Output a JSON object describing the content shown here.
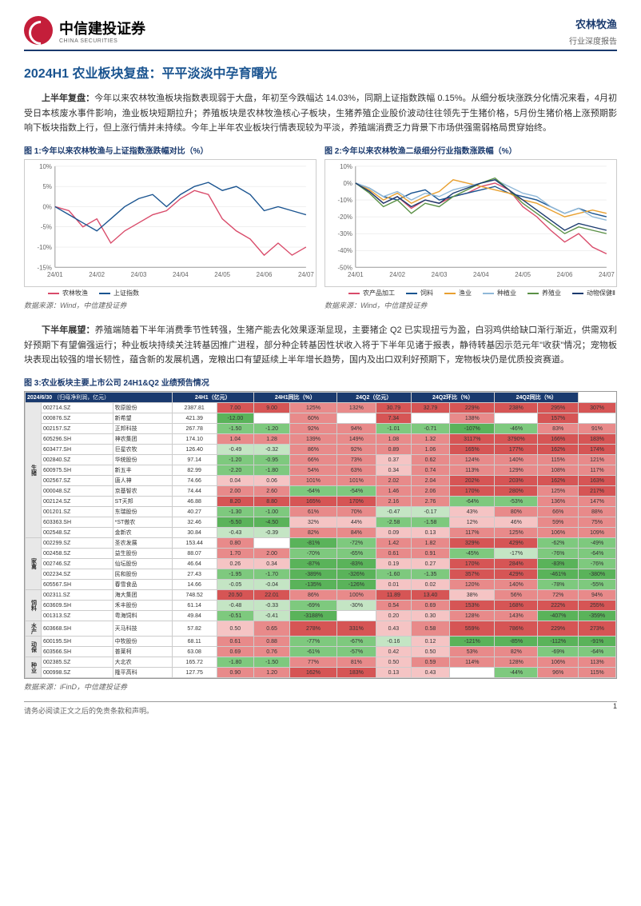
{
  "header": {
    "logo_cn": "中信建投证券",
    "logo_en": "CHINA SECURITIES",
    "sector": "农林牧渔",
    "report_type": "行业深度报告"
  },
  "title": "2024H1 农业板块复盘：平平淡淡中孕育曙光",
  "para1_lead": "上半年复盘：",
  "para1": "今年以来农林牧渔板块指数表现弱于大盘，年初至今跌幅达 14.03%，同期上证指数跌幅 0.15%。从细分板块涨跌分化情况来看，4月初受日本核废水事件影响，渔业板块短期拉升；养殖板块是农林牧渔核心子板块，生猪养殖企业股价波动往往领先于生猪价格，5月份生猪价格上涨预期影响下板块指数上行，但上涨行情并未持续。今年上半年农业板块行情表现较为平淡，养殖端消费乏力背景下市场供强需弱格局贯穿始终。",
  "chart1": {
    "title": "图 1:今年以来农林牧渔与上证指数涨跌幅对比（%）",
    "xticks": [
      "24/01",
      "24/02",
      "24/03",
      "24/04",
      "24/05",
      "24/06",
      "24/07"
    ],
    "ylim": [
      -15,
      10
    ],
    "yticks": [
      -15,
      -10,
      -5,
      0,
      5,
      10
    ],
    "series": [
      {
        "name": "农林牧渔",
        "color": "#d94b6a",
        "data": [
          0,
          -1,
          -5,
          -3,
          -9,
          -6,
          -4,
          -2,
          -1,
          2,
          4,
          3,
          -3,
          -6,
          -8,
          -12,
          -9,
          -12,
          -10
        ]
      },
      {
        "name": "上证指数",
        "color": "#1a5490",
        "data": [
          0,
          -2,
          -4,
          -6,
          -3,
          0,
          2,
          3,
          0,
          3,
          5,
          6,
          4,
          5,
          3,
          -1,
          0,
          -1,
          -2
        ]
      }
    ],
    "source": "数据来源：Wind，中信建投证券"
  },
  "chart2": {
    "title": "图 2:今年以来农林牧渔二级细分行业指数涨跌幅（%）",
    "xticks": [
      "24/01",
      "24/02",
      "24/03",
      "24/04",
      "24/05",
      "24/06",
      "24/07"
    ],
    "ylim": [
      -50,
      10
    ],
    "yticks": [
      -50,
      -40,
      -30,
      -20,
      -10,
      0,
      10
    ],
    "series": [
      {
        "name": "农产品加工",
        "color": "#d94b6a",
        "data": [
          0,
          -5,
          -12,
          -8,
          -15,
          -10,
          -12,
          -8,
          -6,
          -2,
          0,
          -4,
          -14,
          -20,
          -28,
          -35,
          -30,
          -38,
          -42
        ]
      },
      {
        "name": "饲料",
        "color": "#1a5490",
        "data": [
          0,
          -3,
          -8,
          -10,
          -6,
          -4,
          -10,
          -8,
          -6,
          -4,
          -2,
          -6,
          -8,
          -10,
          -14,
          -18,
          -15,
          -18,
          -20
        ]
      },
      {
        "name": "渔业",
        "color": "#e8a030",
        "data": [
          0,
          -4,
          -10,
          -6,
          -12,
          -8,
          -5,
          2,
          0,
          -2,
          -4,
          -6,
          -10,
          -12,
          -16,
          -20,
          -18,
          -16,
          -18
        ]
      },
      {
        "name": "种植业",
        "color": "#8fb8d8",
        "data": [
          0,
          -3,
          -8,
          -5,
          -10,
          -6,
          -8,
          -4,
          -2,
          0,
          2,
          -2,
          -6,
          -8,
          -14,
          -18,
          -15,
          -20,
          -22
        ]
      },
      {
        "name": "养殖业",
        "color": "#5a9045",
        "data": [
          0,
          -6,
          -14,
          -10,
          -18,
          -12,
          -14,
          -8,
          -4,
          0,
          3,
          -4,
          -12,
          -18,
          -24,
          -30,
          -26,
          -28,
          -30
        ]
      },
      {
        "name": "动物保健Ⅱ",
        "color": "#1a3a6e",
        "data": [
          0,
          -5,
          -12,
          -8,
          -14,
          -10,
          -12,
          -6,
          -3,
          0,
          2,
          -4,
          -10,
          -16,
          -22,
          -28,
          -24,
          -26,
          -28
        ]
      }
    ],
    "source": "数据来源：Wind，中信建投证券"
  },
  "para2_lead": "下半年展望：",
  "para2": "养殖端随着下半年消费季节性转强，生猪产能去化效果逐渐显现，主要猪企 Q2 已实现扭亏为盈，白羽鸡供给缺口渐行渐近，供需双利好预期下有望偏强运行；种业板块持续关注转基因推广进程，部分种企转基因性状收入将于下半年见诸于报表，静待转基因示范元年\"收获\"情况；宠物板块表现出较强的增长韧性，蕴含新的发展机遇，宠粮出口有望延续上半年增长趋势，国内及出口双利好预期下，宠物板块仍是优质投资赛道。",
  "table": {
    "title": "图 3:农业板块主要上市公司 24H1&Q2 业绩预告情况",
    "head_date": "2024/6/30",
    "head_unit": "（归母净利润，亿元）",
    "cols_group": [
      "",
      "",
      "市值（亿元）",
      "24H1（亿元）",
      "24H1同比（%）",
      "24Q2（亿元）",
      "24Q2环比（%）",
      "24Q2同比（%）"
    ],
    "source": "数据来源：iFinD，中信建投证券",
    "cats": [
      {
        "name": "生猪",
        "rows": [
          [
            "002714.SZ",
            "牧原股份",
            "2387.81",
            "7.00",
            "9.00",
            "125%",
            "132%",
            "30.79",
            "32.79",
            "229%",
            "238%",
            "295%",
            "307%"
          ],
          [
            "000876.SZ",
            "新希望",
            "421.39",
            "-12.00",
            "",
            "60%",
            "",
            "7.34",
            "",
            "138%",
            "",
            "157%",
            ""
          ],
          [
            "002157.SZ",
            "正邦科技",
            "267.78",
            "-1.50",
            "-1.20",
            "92%",
            "94%",
            "-1.01",
            "-0.71",
            "-107%",
            "-46%",
            "83%",
            "91%"
          ],
          [
            "605296.SH",
            "神农集团",
            "174.10",
            "1.04",
            "1.28",
            "139%",
            "149%",
            "1.08",
            "1.32",
            "3117%",
            "3790%",
            "166%",
            "183%"
          ],
          [
            "603477.SH",
            "巨星农牧",
            "126.40",
            "-0.49",
            "-0.32",
            "86%",
            "92%",
            "0.89",
            "1.06",
            "165%",
            "177%",
            "162%",
            "174%"
          ],
          [
            "002840.SZ",
            "华统股份",
            "97.14",
            "-1.20",
            "-0.95",
            "66%",
            "73%",
            "0.37",
            "0.62",
            "124%",
            "140%",
            "115%",
            "121%"
          ],
          [
            "600975.SH",
            "新五丰",
            "82.99",
            "-2.20",
            "-1.80",
            "54%",
            "63%",
            "0.34",
            "0.74",
            "113%",
            "129%",
            "108%",
            "117%"
          ],
          [
            "002567.SZ",
            "唐人神",
            "74.66",
            "0.04",
            "0.06",
            "101%",
            "101%",
            "2.02",
            "2.04",
            "202%",
            "203%",
            "162%",
            "163%"
          ],
          [
            "000048.SZ",
            "京基智农",
            "74.44",
            "2.00",
            "2.60",
            "-64%",
            "-54%",
            "1.46",
            "2.06",
            "170%",
            "280%",
            "125%",
            "217%"
          ],
          [
            "002124.SZ",
            "ST天邦",
            "46.88",
            "8.20",
            "8.80",
            "165%",
            "170%",
            "2.16",
            "2.76",
            "-64%",
            "-53%",
            "136%",
            "147%"
          ],
          [
            "001201.SZ",
            "东瑞股份",
            "40.27",
            "-1.30",
            "-1.00",
            "61%",
            "70%",
            "-0.47",
            "-0.17",
            "43%",
            "80%",
            "66%",
            "88%"
          ],
          [
            "603363.SH",
            "*ST傲农",
            "32.46",
            "-5.50",
            "-4.50",
            "32%",
            "44%",
            "-2.58",
            "-1.58",
            "12%",
            "46%",
            "59%",
            "75%"
          ],
          [
            "002548.SZ",
            "金新农",
            "30.84",
            "-0.43",
            "-0.39",
            "82%",
            "84%",
            "0.09",
            "0.13",
            "117%",
            "125%",
            "106%",
            "109%"
          ]
        ]
      },
      {
        "name": "家禽",
        "rows": [
          [
            "002299.SZ",
            "圣农发展",
            "153.44",
            "0.80",
            "",
            "-81%",
            "-72%",
            "1.42",
            "1.82",
            "329%",
            "429%",
            "-62%",
            "-49%"
          ],
          [
            "002458.SZ",
            "益生股份",
            "88.07",
            "1.70",
            "2.00",
            "-70%",
            "-65%",
            "0.61",
            "0.91",
            "-45%",
            "-17%",
            "-76%",
            "-64%"
          ],
          [
            "002746.SZ",
            "仙坛股份",
            "46.64",
            "0.26",
            "0.34",
            "-87%",
            "-83%",
            "0.19",
            "0.27",
            "170%",
            "284%",
            "-83%",
            "-76%"
          ],
          [
            "002234.SZ",
            "民和股份",
            "27.43",
            "-1.95",
            "-1.70",
            "-389%",
            "-326%",
            "-1.60",
            "-1.35",
            "357%",
            "429%",
            "-461%",
            "-380%"
          ],
          [
            "605567.SH",
            "春雪食品",
            "14.66",
            "-0.05",
            "-0.04",
            "-135%",
            "-126%",
            "0.01",
            "0.02",
            "120%",
            "140%",
            "-78%",
            "-55%"
          ]
        ]
      },
      {
        "name": "饲料",
        "rows": [
          [
            "002311.SZ",
            "海大集团",
            "748.52",
            "20.50",
            "22.01",
            "86%",
            "100%",
            "11.89",
            "13.40",
            "38%",
            "56%",
            "72%",
            "94%"
          ],
          [
            "603609.SH",
            "禾丰股份",
            "61.14",
            "-0.48",
            "-0.33",
            "-69%",
            "-30%",
            "0.54",
            "0.69",
            "153%",
            "168%",
            "222%",
            "255%"
          ],
          [
            "001313.SZ",
            "粤海饲料",
            "49.84",
            "-0.51",
            "-0.41",
            "-3188%",
            "",
            "0.20",
            "0.30",
            "128%",
            "143%",
            "-407%",
            "-359%"
          ]
        ]
      },
      {
        "name": "水产",
        "rows": [
          [
            "603668.SH",
            "天马科技",
            "57.82",
            "0.50",
            "0.65",
            "278%",
            "331%",
            "0.43",
            "0.58",
            "559%",
            "786%",
            "229%",
            "273%"
          ]
        ]
      },
      {
        "name": "动保",
        "rows": [
          [
            "600195.SH",
            "中牧股份",
            "68.11",
            "0.61",
            "0.88",
            "-77%",
            "-67%",
            "-0.16",
            "0.12",
            "-121%",
            "-85%",
            "-112%",
            "-91%"
          ],
          [
            "603566.SH",
            "普莱柯",
            "63.08",
            "0.69",
            "0.76",
            "-61%",
            "-57%",
            "0.42",
            "0.50",
            "53%",
            "82%",
            "-69%",
            "-64%"
          ]
        ]
      },
      {
        "name": "种业",
        "rows": [
          [
            "002385.SZ",
            "大北农",
            "165.72",
            "-1.80",
            "-1.50",
            "77%",
            "81%",
            "0.50",
            "0.59",
            "114%",
            "128%",
            "106%",
            "113%"
          ],
          [
            "000998.SZ",
            "隆平高科",
            "127.75",
            "0.90",
            "1.20",
            "162%",
            "183%",
            "0.13",
            "0.43",
            "",
            "-44%",
            "96%",
            "115%"
          ]
        ]
      }
    ]
  },
  "footer": {
    "disclaimer": "请务必阅读正文之后的免责条款和声明。",
    "page": "1"
  }
}
